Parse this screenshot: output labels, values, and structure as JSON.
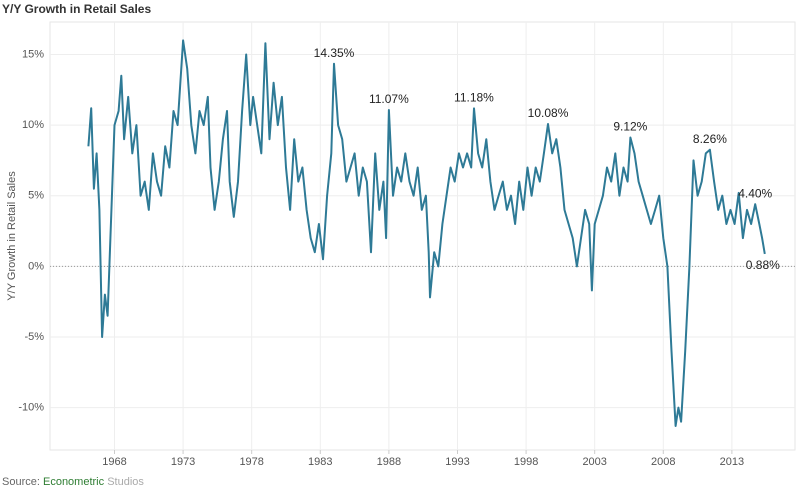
{
  "chart_data": {
    "type": "line",
    "title": "Y/Y Growth in Retail Sales",
    "y_label": "Y/Y Growth in Retail Sales",
    "source": [
      "Source:",
      "Econometric",
      "Studios"
    ],
    "source_colors": [
      "#666666",
      "#2e7d32",
      "#aaaaaa"
    ],
    "xlim": [
      1963.3,
      2017.6
    ],
    "xticks": [
      1968,
      1973,
      1978,
      1983,
      1988,
      1993,
      1998,
      2003,
      2008,
      2013
    ],
    "ylim": [
      -13,
      17.3
    ],
    "yticks": [
      {
        "value": -10,
        "label": "-10%"
      },
      {
        "value": -5,
        "label": "-5%"
      },
      {
        "value": 0,
        "label": "0%"
      },
      {
        "value": 5,
        "label": "5%"
      },
      {
        "value": 10,
        "label": "10%"
      },
      {
        "value": 15,
        "label": "15%"
      }
    ],
    "grid": true,
    "zero_line": true,
    "series": [
      {
        "color": "#2e7a96",
        "x": [
          1966.1,
          1966.3,
          1966.5,
          1966.7,
          1966.9,
          1967.1,
          1967.3,
          1967.5,
          1967.7,
          1968.0,
          1968.3,
          1968.5,
          1968.7,
          1969.0,
          1969.3,
          1969.6,
          1969.9,
          1970.2,
          1970.5,
          1970.8,
          1971.1,
          1971.4,
          1971.7,
          1972.0,
          1972.3,
          1972.6,
          1973.0,
          1973.3,
          1973.6,
          1973.9,
          1974.2,
          1974.5,
          1974.8,
          1975.0,
          1975.3,
          1975.6,
          1975.9,
          1976.2,
          1976.4,
          1976.7,
          1977.0,
          1977.3,
          1977.6,
          1977.9,
          1978.1,
          1978.4,
          1978.7,
          1979.0,
          1979.3,
          1979.6,
          1979.9,
          1980.2,
          1980.5,
          1980.8,
          1981.1,
          1981.4,
          1981.7,
          1982.0,
          1982.3,
          1982.6,
          1982.9,
          1983.2,
          1983.5,
          1983.8,
          1984.0,
          1984.3,
          1984.6,
          1984.9,
          1985.2,
          1985.5,
          1985.8,
          1986.1,
          1986.4,
          1986.7,
          1987.0,
          1987.3,
          1987.6,
          1987.8,
          1988.0,
          1988.3,
          1988.6,
          1988.9,
          1989.2,
          1989.5,
          1989.8,
          1990.1,
          1990.4,
          1990.7,
          1990.9,
          1991.0,
          1991.3,
          1991.6,
          1991.9,
          1992.2,
          1992.5,
          1992.8,
          1993.1,
          1993.4,
          1993.7,
          1994.0,
          1994.2,
          1994.5,
          1994.8,
          1995.1,
          1995.4,
          1995.7,
          1996.0,
          1996.3,
          1996.6,
          1996.9,
          1997.2,
          1997.5,
          1997.8,
          1998.1,
          1998.4,
          1998.7,
          1999.0,
          1999.3,
          1999.6,
          1999.9,
          2000.2,
          2000.5,
          2000.8,
          2001.1,
          2001.4,
          2001.7,
          2002.0,
          2002.3,
          2002.6,
          2002.8,
          2003.0,
          2003.3,
          2003.6,
          2003.9,
          2004.2,
          2004.5,
          2004.8,
          2005.1,
          2005.4,
          2005.6,
          2005.9,
          2006.2,
          2006.5,
          2006.8,
          2007.1,
          2007.4,
          2007.7,
          2008.0,
          2008.3,
          2008.6,
          2008.9,
          2009.1,
          2009.3,
          2009.6,
          2009.9,
          2010.2,
          2010.5,
          2010.8,
          2011.1,
          2011.4,
          2011.7,
          2012.0,
          2012.3,
          2012.6,
          2012.9,
          2013.2,
          2013.5,
          2013.8,
          2014.1,
          2014.4,
          2014.7,
          2015.0,
          2015.2,
          2015.4
        ],
        "values": [
          8.5,
          11.2,
          5.5,
          8,
          4,
          -5,
          -2,
          -3.5,
          2,
          10,
          11,
          13.5,
          9,
          12,
          8,
          10,
          5,
          6,
          4,
          8,
          6,
          5,
          8.5,
          7,
          11,
          10,
          16,
          14,
          10,
          8,
          11,
          10,
          12,
          7,
          4,
          6,
          9,
          11,
          6,
          3.5,
          6,
          11,
          15,
          10,
          12,
          10,
          8,
          15.8,
          9,
          13,
          10,
          12,
          7,
          4,
          9,
          6,
          7,
          4,
          2,
          1,
          3,
          0.5,
          5,
          8,
          14.35,
          10,
          9,
          6,
          7,
          8,
          5,
          7,
          6,
          1,
          8,
          4,
          6,
          2,
          11.07,
          5,
          7,
          6,
          8,
          6,
          5,
          7,
          4,
          5,
          1,
          -2.2,
          1,
          0,
          3,
          5,
          7,
          6,
          8,
          7,
          8,
          7,
          11.18,
          8,
          7,
          9,
          6,
          4,
          5,
          6,
          4,
          5,
          3,
          6,
          4,
          7,
          5,
          7,
          6,
          8,
          10.08,
          8,
          9,
          7,
          4,
          3,
          2,
          0,
          2,
          4,
          3,
          -1.7,
          3,
          4,
          5,
          7,
          6,
          8,
          5,
          7,
          6,
          9.12,
          8,
          6,
          5,
          4,
          3,
          4,
          5,
          2,
          0,
          -6,
          -11.3,
          -10,
          -11,
          -6,
          0,
          7.5,
          5,
          6,
          8,
          8.26,
          6,
          4,
          5,
          3,
          4,
          3,
          5.2,
          2,
          4,
          3,
          4.4,
          3,
          2,
          0.88
        ]
      }
    ],
    "annotations": [
      {
        "x": 1984.0,
        "value": 14.35,
        "label": "14.35%"
      },
      {
        "x": 1988.0,
        "value": 11.07,
        "label": "11.07%"
      },
      {
        "x": 1994.2,
        "value": 11.18,
        "label": "11.18%"
      },
      {
        "x": 1999.6,
        "value": 10.08,
        "label": "10.08%"
      },
      {
        "x": 2005.6,
        "value": 9.12,
        "label": "9.12%"
      },
      {
        "x": 2011.4,
        "value": 8.26,
        "label": "8.26%"
      },
      {
        "x": 2014.7,
        "value": 4.4,
        "label": "4.40%"
      },
      {
        "x": 2015.4,
        "value": 0.88,
        "label": "0.88%"
      }
    ]
  }
}
